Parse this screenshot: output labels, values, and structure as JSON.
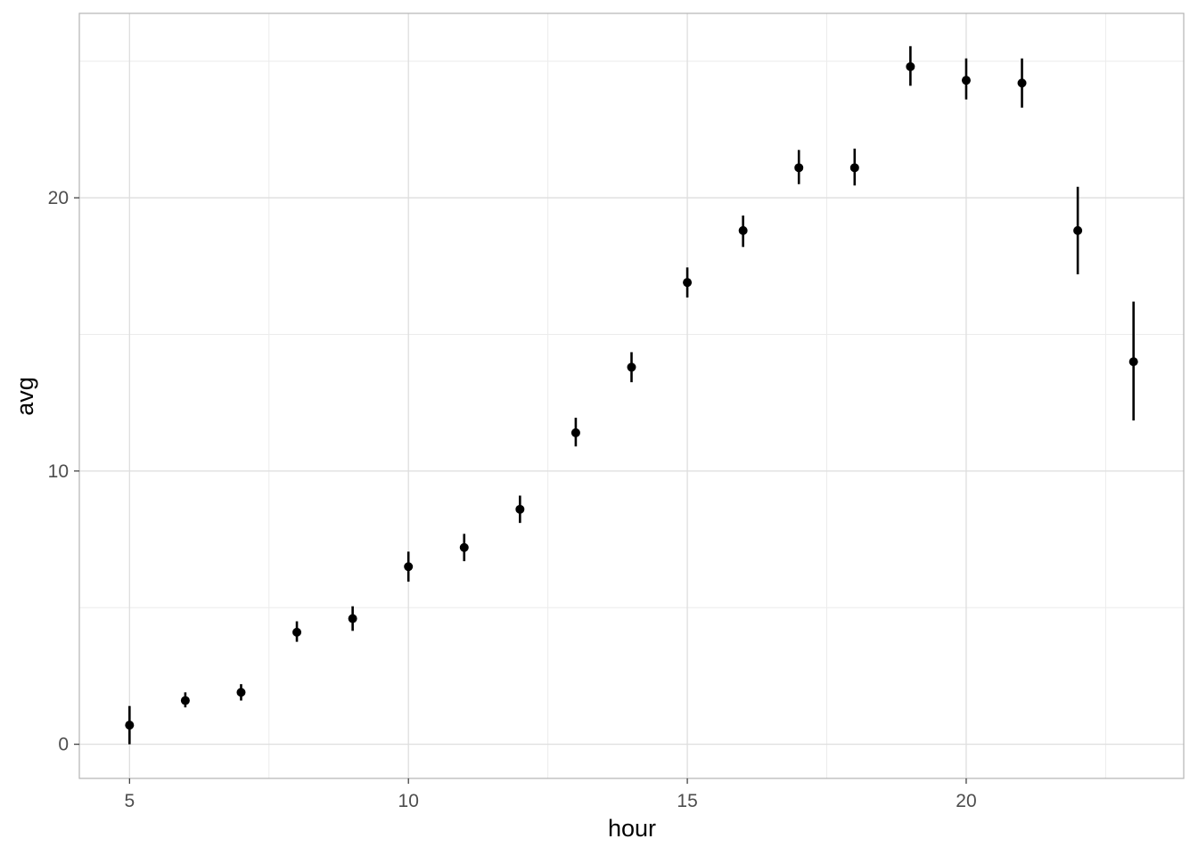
{
  "chart_data": {
    "type": "scatter",
    "title": "",
    "xlabel": "hour",
    "ylabel": "avg",
    "xlim": [
      4.1,
      23.9
    ],
    "ylim": [
      -1.25,
      26.75
    ],
    "x_ticks": [
      5,
      10,
      15,
      20
    ],
    "x_tick_labels": [
      "5",
      "10",
      "15",
      "20"
    ],
    "x_minor_ticks": [
      7.5,
      12.5,
      17.5,
      22.5
    ],
    "y_ticks": [
      0,
      10,
      20
    ],
    "y_tick_labels": [
      "0",
      "10",
      "20"
    ],
    "y_minor_ticks": [
      5,
      15,
      25
    ],
    "grid": true,
    "error_bars": true,
    "series": [
      {
        "points": [
          {
            "x": 5,
            "y": 0.7,
            "ymin": 0.0,
            "ymax": 1.4
          },
          {
            "x": 6,
            "y": 1.6,
            "ymin": 1.35,
            "ymax": 1.9
          },
          {
            "x": 7,
            "y": 1.9,
            "ymin": 1.6,
            "ymax": 2.2
          },
          {
            "x": 8,
            "y": 4.1,
            "ymin": 3.75,
            "ymax": 4.5
          },
          {
            "x": 9,
            "y": 4.6,
            "ymin": 4.15,
            "ymax": 5.05
          },
          {
            "x": 10,
            "y": 6.5,
            "ymin": 5.95,
            "ymax": 7.05
          },
          {
            "x": 11,
            "y": 7.2,
            "ymin": 6.7,
            "ymax": 7.7
          },
          {
            "x": 12,
            "y": 8.6,
            "ymin": 8.1,
            "ymax": 9.1
          },
          {
            "x": 13,
            "y": 11.4,
            "ymin": 10.9,
            "ymax": 11.95
          },
          {
            "x": 14,
            "y": 13.8,
            "ymin": 13.25,
            "ymax": 14.35
          },
          {
            "x": 15,
            "y": 16.9,
            "ymin": 16.35,
            "ymax": 17.45
          },
          {
            "x": 16,
            "y": 18.8,
            "ymin": 18.2,
            "ymax": 19.35
          },
          {
            "x": 17,
            "y": 21.1,
            "ymin": 20.5,
            "ymax": 21.75
          },
          {
            "x": 18,
            "y": 21.1,
            "ymin": 20.45,
            "ymax": 21.8
          },
          {
            "x": 19,
            "y": 24.8,
            "ymin": 24.1,
            "ymax": 25.55
          },
          {
            "x": 20,
            "y": 24.3,
            "ymin": 23.6,
            "ymax": 25.1
          },
          {
            "x": 21,
            "y": 24.2,
            "ymin": 23.3,
            "ymax": 25.1
          },
          {
            "x": 22,
            "y": 18.8,
            "ymin": 17.2,
            "ymax": 20.4
          },
          {
            "x": 23,
            "y": 14.0,
            "ymin": 11.85,
            "ymax": 16.2
          }
        ]
      }
    ]
  },
  "colors": {
    "background": "#ffffff",
    "panel_border": "#b3b3b3",
    "grid_major": "#dedede",
    "grid_minor": "#ececec",
    "point": "#000000",
    "tick_text": "#4d4d4d"
  }
}
